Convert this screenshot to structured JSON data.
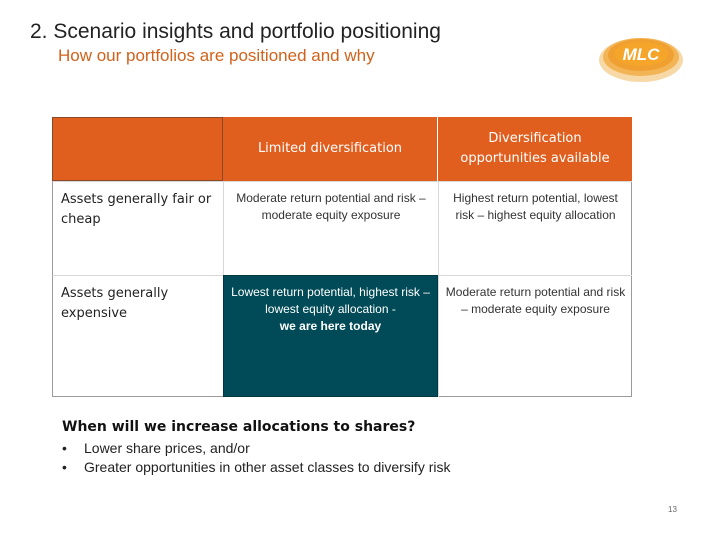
{
  "header": {
    "title": "2. Scenario insights and portfolio positioning",
    "subtitle": "How our portfolios are positioned and why",
    "logo_text": "MLC"
  },
  "matrix": {
    "columns": [
      "Limited diversification",
      "Diversification opportunities available"
    ],
    "rows": [
      {
        "label": "Assets generally fair or cheap",
        "cells": [
          "Moderate return potential and risk – moderate equity exposure",
          "Highest return potential, lowest risk – highest equity allocation"
        ]
      },
      {
        "label": "Assets generally expensive",
        "cells": [
          "Lowest return potential, highest risk – lowest equity allocation -",
          "Moderate return potential and risk – moderate equity exposure"
        ],
        "highlight": "we are here today"
      }
    ]
  },
  "question": "When will we increase allocations to shares?",
  "bullets": [
    "Lower share prices, and/or",
    "Greater opportunities in other asset classes to diversify risk"
  ],
  "page_number": "13",
  "colors": {
    "header_orange": "#e05f1f",
    "subtitle_orange": "#d0621b",
    "highlight_teal": "#004b57",
    "logo_gold": "#f0a030"
  }
}
